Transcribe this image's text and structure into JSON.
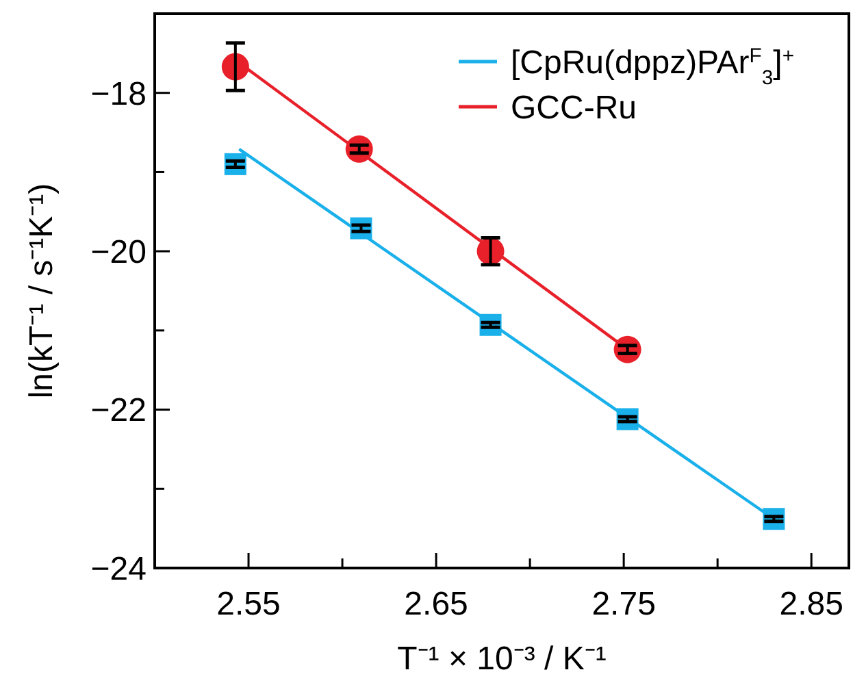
{
  "chart_data": {
    "type": "scatter",
    "xlabel": "T⁻¹ × 10⁻³ / K⁻¹",
    "ylabel": "ln(kT⁻¹ / s⁻¹K⁻¹)",
    "xlim": [
      2.5,
      2.87
    ],
    "xticks": [
      2.55,
      {
        "value": 2.6,
        "label": null
      },
      2.65,
      {
        "value": 2.7,
        "label": null
      },
      2.75,
      {
        "value": 2.8,
        "label": null
      },
      2.85
    ],
    "ylim": [
      -24,
      -17
    ],
    "yticks": [
      {
        "value": -18,
        "label": "−18"
      },
      {
        "value": -19,
        "label": null
      },
      {
        "value": -20,
        "label": "−20"
      },
      {
        "value": -21,
        "label": null
      },
      {
        "value": -22,
        "label": "−22"
      },
      {
        "value": -23,
        "label": null
      },
      {
        "value": -24,
        "label": "−24"
      }
    ],
    "grid": false,
    "legend": "top right",
    "series": [
      {
        "type": "line",
        "name": "[CpRu(dppz)PAr$^{F}$$_{3}$]$^{+}$",
        "color": "#1ab0ea",
        "x": [
          2.545,
          2.83
        ],
        "values": [
          -18.71,
          -23.38
        ],
        "marker": "none"
      },
      {
        "type": "line",
        "name": "GCC-Ru",
        "color": "#e8202a",
        "x": [
          2.545,
          2.752
        ],
        "values": [
          -17.62,
          -21.24
        ],
        "marker": "none"
      },
      {
        "color": "#1ab0ea",
        "marker": "square",
        "x": [
          2.543,
          2.61,
          2.679,
          2.752,
          2.83
        ],
        "values": [
          -18.9,
          -19.71,
          -20.93,
          -22.12,
          -23.38
        ],
        "errors": [
          0.04,
          0.04,
          0.03,
          0.03,
          0.03
        ]
      },
      {
        "color": "#e8202a",
        "marker": "circle",
        "x": [
          2.543,
          2.609,
          2.679,
          2.752
        ],
        "values": [
          -17.67,
          -18.71,
          -20.0,
          -21.24
        ],
        "errors": [
          0.3,
          0.05,
          0.17,
          0.05
        ]
      }
    ]
  }
}
